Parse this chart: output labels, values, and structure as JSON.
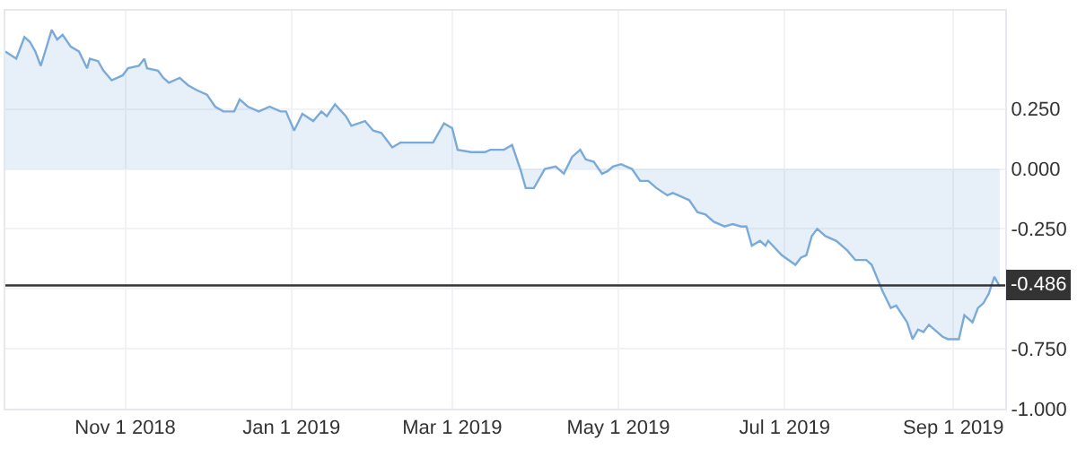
{
  "chart_data": {
    "type": "area",
    "x": [
      "2018-09-18",
      "2018-09-22",
      "2018-09-25",
      "2018-09-27",
      "2018-09-29",
      "2018-10-01",
      "2018-10-05",
      "2018-10-07",
      "2018-10-09",
      "2018-10-12",
      "2018-10-15",
      "2018-10-18",
      "2018-10-19",
      "2018-10-22",
      "2018-10-24",
      "2018-10-27",
      "2018-10-29",
      "2018-10-31",
      "2018-11-02",
      "2018-11-06",
      "2018-11-08",
      "2018-11-09",
      "2018-11-13",
      "2018-11-15",
      "2018-11-17",
      "2018-11-21",
      "2018-11-24",
      "2018-11-27",
      "2018-12-01",
      "2018-12-04",
      "2018-12-07",
      "2018-12-11",
      "2018-12-13",
      "2018-12-16",
      "2018-12-20",
      "2018-12-24",
      "2018-12-28",
      "2018-12-30",
      "2019-01-02",
      "2019-01-05",
      "2019-01-09",
      "2019-01-12",
      "2019-01-14",
      "2019-01-17",
      "2019-01-21",
      "2019-01-23",
      "2019-01-28",
      "2019-01-31",
      "2019-02-03",
      "2019-02-07",
      "2019-02-10",
      "2019-02-13",
      "2019-02-17",
      "2019-02-20",
      "2019-02-22",
      "2019-02-26",
      "2019-03-01",
      "2019-03-03",
      "2019-03-08",
      "2019-03-13",
      "2019-03-15",
      "2019-03-20",
      "2019-03-23",
      "2019-03-26",
      "2019-03-28",
      "2019-03-31",
      "2019-04-02",
      "2019-04-04",
      "2019-04-08",
      "2019-04-11",
      "2019-04-14",
      "2019-04-17",
      "2019-04-19",
      "2019-04-22",
      "2019-04-25",
      "2019-04-27",
      "2019-04-29",
      "2019-05-02",
      "2019-05-06",
      "2019-05-09",
      "2019-05-12",
      "2019-05-15",
      "2019-05-19",
      "2019-05-21",
      "2019-05-23",
      "2019-05-27",
      "2019-05-30",
      "2019-06-02",
      "2019-06-05",
      "2019-06-09",
      "2019-06-12",
      "2019-06-15",
      "2019-06-17",
      "2019-06-19",
      "2019-06-22",
      "2019-06-24",
      "2019-06-25",
      "2019-06-30",
      "2019-07-05",
      "2019-07-07",
      "2019-07-09",
      "2019-07-11",
      "2019-07-13",
      "2019-07-16",
      "2019-07-20",
      "2019-07-24",
      "2019-07-27",
      "2019-07-31",
      "2019-08-02",
      "2019-08-06",
      "2019-08-09",
      "2019-08-11",
      "2019-08-15",
      "2019-08-17",
      "2019-08-19",
      "2019-08-21",
      "2019-08-23",
      "2019-08-26",
      "2019-08-28",
      "2019-08-30",
      "2019-09-01",
      "2019-09-03",
      "2019-09-05",
      "2019-09-08",
      "2019-09-10",
      "2019-09-12",
      "2019-09-14",
      "2019-09-16",
      "2019-09-18"
    ],
    "series": [
      {
        "color": "#7aaad8",
        "values": [
          0.49,
          0.46,
          0.55,
          0.53,
          0.49,
          0.43,
          0.58,
          0.54,
          0.56,
          0.51,
          0.49,
          0.42,
          0.46,
          0.45,
          0.41,
          0.37,
          0.38,
          0.39,
          0.42,
          0.43,
          0.46,
          0.42,
          0.41,
          0.38,
          0.36,
          0.38,
          0.35,
          0.33,
          0.31,
          0.26,
          0.24,
          0.24,
          0.29,
          0.26,
          0.24,
          0.26,
          0.24,
          0.24,
          0.16,
          0.23,
          0.2,
          0.24,
          0.22,
          0.27,
          0.22,
          0.18,
          0.2,
          0.16,
          0.15,
          0.09,
          0.11,
          0.11,
          0.11,
          0.11,
          0.11,
          0.19,
          0.17,
          0.08,
          0.07,
          0.07,
          0.08,
          0.08,
          0.1,
          0.0,
          -0.08,
          -0.08,
          -0.04,
          0.0,
          0.01,
          -0.02,
          0.05,
          0.08,
          0.04,
          0.03,
          -0.02,
          -0.01,
          0.01,
          0.02,
          0.0,
          -0.05,
          -0.05,
          -0.08,
          -0.11,
          -0.1,
          -0.11,
          -0.13,
          -0.18,
          -0.19,
          -0.22,
          -0.24,
          -0.23,
          -0.24,
          -0.24,
          -0.32,
          -0.3,
          -0.32,
          -0.3,
          -0.36,
          -0.4,
          -0.37,
          -0.36,
          -0.28,
          -0.25,
          -0.28,
          -0.3,
          -0.34,
          -0.38,
          -0.38,
          -0.4,
          -0.51,
          -0.58,
          -0.57,
          -0.64,
          -0.71,
          -0.67,
          -0.68,
          -0.65,
          -0.68,
          -0.7,
          -0.71,
          -0.71,
          -0.71,
          -0.61,
          -0.64,
          -0.58,
          -0.56,
          -0.52,
          -0.45,
          -0.49
        ]
      }
    ],
    "xlim": [
      "2018-09-18",
      "2019-09-20"
    ],
    "xticks": [
      {
        "value": "2018-11-01",
        "label": "Nov 1 2018"
      },
      {
        "value": "2019-01-01",
        "label": "Jan 1 2019"
      },
      {
        "value": "2019-03-01",
        "label": "Mar 1 2019"
      },
      {
        "value": "2019-05-01",
        "label": "May 1 2019"
      },
      {
        "value": "2019-07-01",
        "label": "Jul 1 2019"
      },
      {
        "value": "2019-09-01",
        "label": "Sep 1 2019"
      }
    ],
    "ylim": [
      -1.0,
      0.66
    ],
    "yticks": [
      {
        "value": 0.25,
        "label": "0.250"
      },
      {
        "value": 0.0,
        "label": "0.000"
      },
      {
        "value": -0.25,
        "label": "-0.250"
      },
      {
        "value": -0.5,
        "label": null
      },
      {
        "value": -0.75,
        "label": "-0.750"
      },
      {
        "value": -1.0,
        "label": "-1.000"
      }
    ],
    "ref_lines": [
      {
        "axis": "y",
        "value": -0.486,
        "label": "-0.486",
        "color": "#333333"
      }
    ],
    "grid": true,
    "marker": "none",
    "line_style": "solid"
  }
}
